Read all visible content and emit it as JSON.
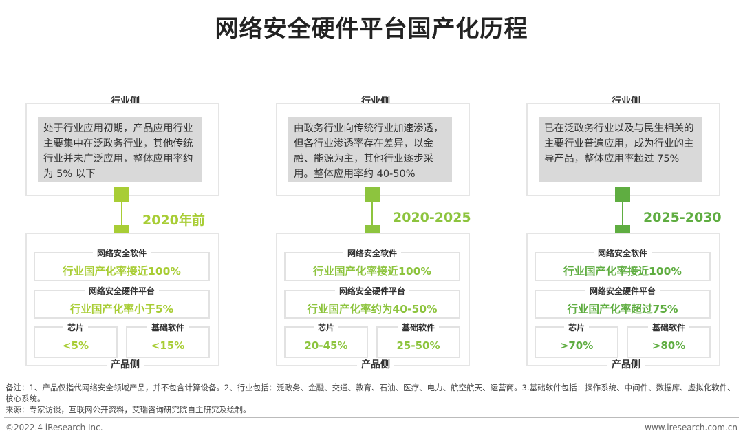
{
  "title": "网络安全硬件平台国产化历程",
  "industry_label": "行业侧",
  "product_label": "产品侧",
  "stages": [
    {
      "year": "2020年前",
      "color": "#a8cd35",
      "industry_text": "处于行业应用初期，产品应用行业主要集中在泛政务行业，其他传统行业并未广泛应用，整体应用率约为 5% 以下",
      "software_label": "网络安全软件",
      "software_value": "行业国产化率接近100%",
      "platform_label": "网络安全硬件平台",
      "platform_value": "行业国产化率小于5%",
      "chip_label": "芯片",
      "chip_value": "<5%",
      "base_label": "基础软件",
      "base_value": "<15%"
    },
    {
      "year": "2020-2025",
      "color": "#8dc43e",
      "industry_text": "由政务行业向传统行业加速渗透，但各行业渗透率存在差异，以金融、能源为主，其他行业逐步采用。整体应用率约 40-50%",
      "software_label": "网络安全软件",
      "software_value": "行业国产化率接近100%",
      "platform_label": "网络安全硬件平台",
      "platform_value": "行业国产化率约为40-50%",
      "chip_label": "芯片",
      "chip_value": "20-45%",
      "base_label": "基础软件",
      "base_value": "25-50%"
    },
    {
      "year": "2025-2030",
      "color": "#5fad41",
      "industry_text": "已在泛政务行业以及与民生相关的主要行业普遍应用，成为行业的主导产品，整体应用率超过 75%",
      "software_label": "网络安全软件",
      "software_value": "行业国产化率接近100%",
      "platform_label": "网络安全硬件平台",
      "platform_value": "行业国产化率超过75%",
      "chip_label": "芯片",
      "chip_value": ">70%",
      "base_label": "基础软件",
      "base_value": ">80%"
    }
  ],
  "notes_line1": "备注：1、产品仅指代网络安全领域产品，并不包含计算设备。2、行业包括：泛政务、金融、交通、教育、石油、医疗、电力、航空航天、运营商。3.基础软件包括：操作系统、中间件、数据库、虚拟化软件、核心系统。",
  "notes_line2": "来源：专家访谈，互联网公开资料，艾瑞咨询研究院自主研究及绘制。",
  "copyright": "©2022.4 iResearch Inc.",
  "website": "www.iresearch.com.cn"
}
